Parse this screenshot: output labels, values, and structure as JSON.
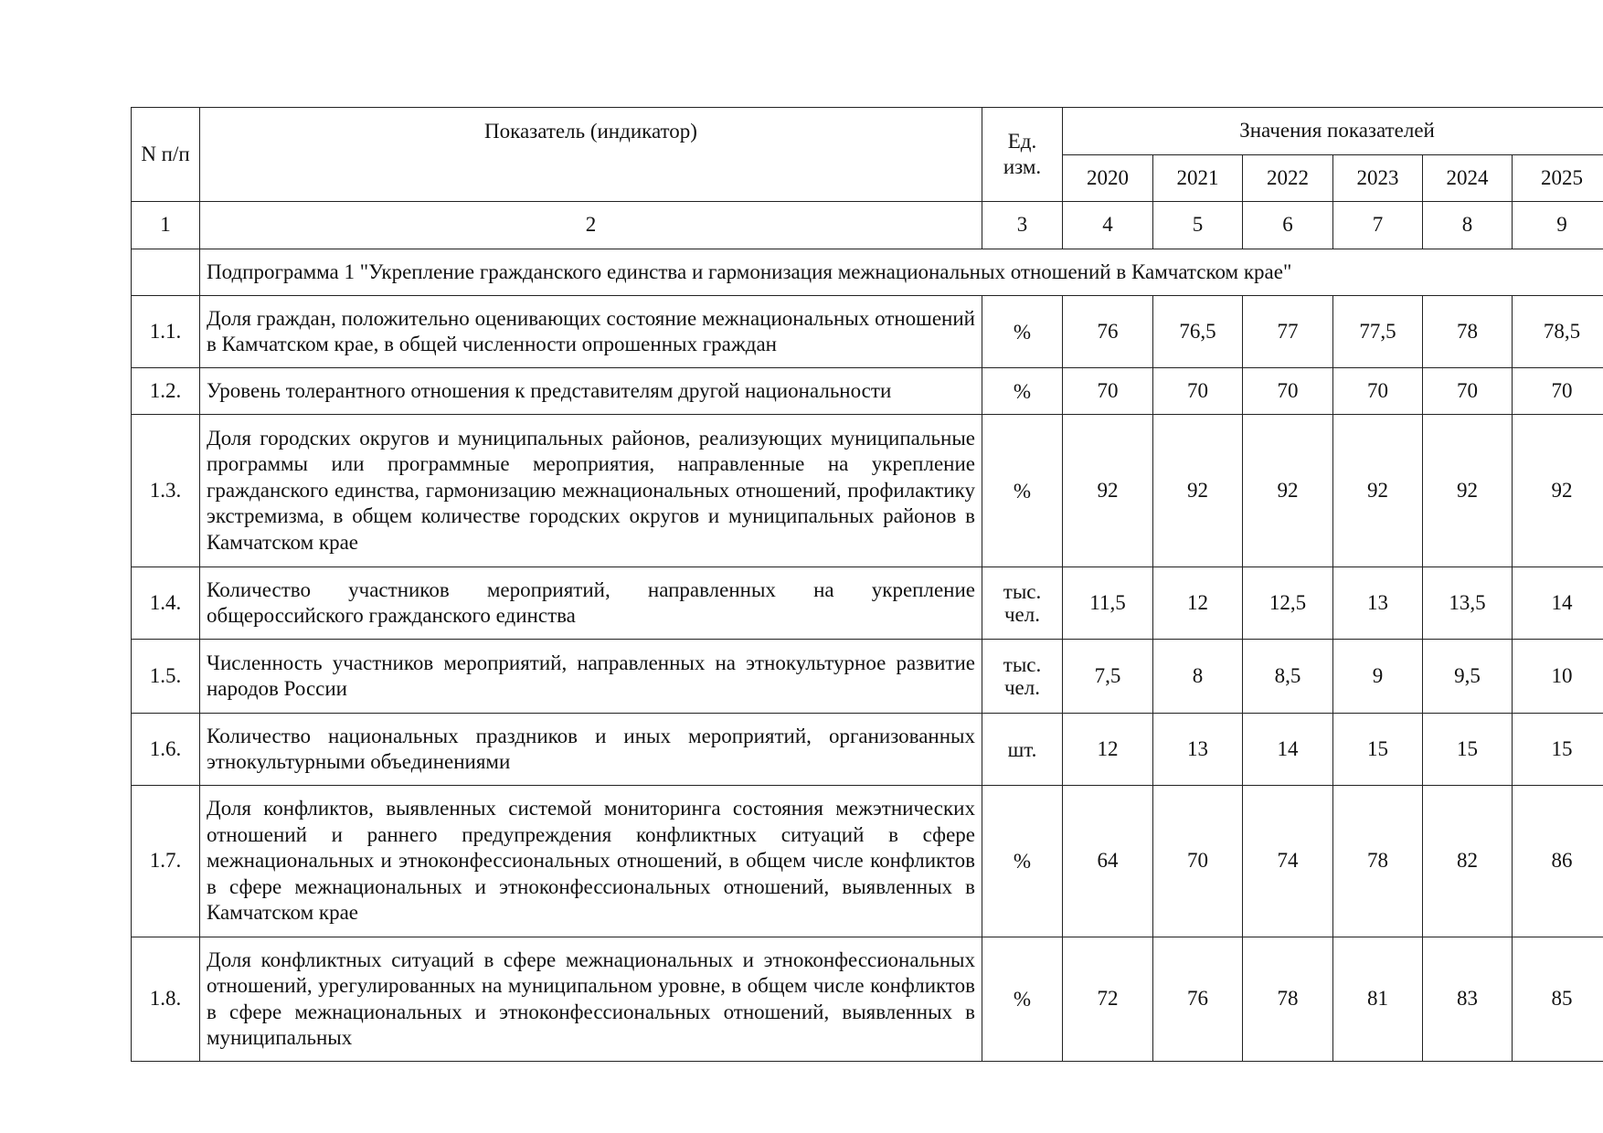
{
  "table": {
    "headers": {
      "num": "N п/п",
      "indicator": "Показатель (индикатор)",
      "unit": "Ед. изм.",
      "values": "Значения показателей",
      "years": [
        "2020",
        "2021",
        "2022",
        "2023",
        "2024",
        "2025"
      ]
    },
    "column_numbers": [
      "1",
      "2",
      "3",
      "4",
      "5",
      "6",
      "7",
      "8",
      "9"
    ],
    "subprogram": "Подпрограмма 1 \"Укрепление гражданского единства и гармонизация межнациональных отношений в Камчатском крае\"",
    "rows": [
      {
        "num": "1.1.",
        "name": "Доля граждан, положительно оценивающих состояние межнациональных отношений в Камчатском крае, в общей численности опрошенных граждан",
        "unit": "%",
        "values": [
          "76",
          "76,5",
          "77",
          "77,5",
          "78",
          "78,5"
        ]
      },
      {
        "num": "1.2.",
        "name": "Уровень толерантного отношения к представителям другой национальности",
        "unit": "%",
        "values": [
          "70",
          "70",
          "70",
          "70",
          "70",
          "70"
        ]
      },
      {
        "num": "1.3.",
        "name": "Доля городских округов и муниципальных районов, реализующих муниципальные программы или программные мероприятия, направленные на укрепление гражданского единства, гармонизацию межнациональных отношений, профилактику экстремизма, в общем количестве городских округов и муниципальных районов в Камчатском крае",
        "unit": "%",
        "values": [
          "92",
          "92",
          "92",
          "92",
          "92",
          "92"
        ]
      },
      {
        "num": "1.4.",
        "name": "Количество участников мероприятий, направленных на укрепление общероссийского гражданского единства",
        "unit": "тыс. чел.",
        "values": [
          "11,5",
          "12",
          "12,5",
          "13",
          "13,5",
          "14"
        ]
      },
      {
        "num": "1.5.",
        "name": "Численность участников мероприятий, направленных на этнокультурное развитие народов России",
        "unit": "тыс. чел.",
        "values": [
          "7,5",
          "8",
          "8,5",
          "9",
          "9,5",
          "10"
        ]
      },
      {
        "num": "1.6.",
        "name": "Количество национальных праздников и иных мероприятий, организованных этнокультурными объединениями",
        "unit": "шт.",
        "values": [
          "12",
          "13",
          "14",
          "15",
          "15",
          "15"
        ]
      },
      {
        "num": "1.7.",
        "name": "Доля конфликтов, выявленных системой мониторинга состояния межэтнических отношений и раннего предупреждения конфликтных ситуаций в сфере межнациональных и этноконфессиональных отношений, в общем числе конфликтов в сфере межнациональных и этноконфессиональных отношений, выявленных в Камчатском крае",
        "unit": "%",
        "values": [
          "64",
          "70",
          "74",
          "78",
          "82",
          "86"
        ]
      },
      {
        "num": "1.8.",
        "name": "Доля конфликтных ситуаций в сфере межнациональных и этноконфессиональных отношений, урегулированных на муниципальном уровне, в общем числе конфликтов в сфере межнациональных и этноконфессиональных отношений, выявленных в муниципальных",
        "unit": "%",
        "values": [
          "72",
          "76",
          "78",
          "81",
          "83",
          "85"
        ]
      }
    ]
  }
}
